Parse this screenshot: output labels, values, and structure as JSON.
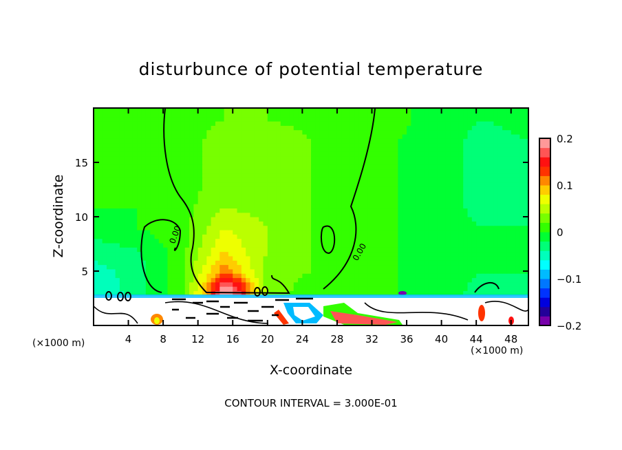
{
  "chart_data": {
    "type": "heatmap",
    "title": "disturbunce of potential temperature",
    "xlabel": "X-coordinate",
    "ylabel": "Z-coordinate",
    "x_unit_label": "(×1000 m)",
    "footnote": "CONTOUR INTERVAL = 3.000E-01",
    "xlim": [
      0,
      50
    ],
    "ylim": [
      0,
      20
    ],
    "xticks": [
      4,
      8,
      12,
      16,
      20,
      24,
      28,
      32,
      36,
      40,
      44,
      48
    ],
    "yticks": [
      5,
      10,
      15
    ],
    "contour_label": "0.00",
    "colorbar": {
      "range": [
        -0.2,
        0.2
      ],
      "step": 0.02,
      "tick_values": [
        0.2,
        0.1,
        0,
        -0.1,
        -0.2
      ],
      "tick_labels": [
        "0.2",
        "0.1",
        "0",
        "−0.1",
        "−0.2"
      ],
      "colors_low_to_high": [
        "#7700aa",
        "#220099",
        "#0000dd",
        "#0033ff",
        "#0077ff",
        "#00bbff",
        "#00ffff",
        "#00ffbb",
        "#00ff77",
        "#00ff33",
        "#33ff00",
        "#77ff00",
        "#bbff00",
        "#eeff00",
        "#ffcc00",
        "#ff8800",
        "#ff3300",
        "#ff1111",
        "#ff5555",
        "#ff9999"
      ]
    },
    "grid_x": [
      0,
      5,
      10,
      15,
      20,
      25,
      30,
      35,
      40,
      45,
      50
    ],
    "grid_z": [
      3,
      5,
      7,
      9,
      11,
      13,
      15,
      17,
      19,
      20
    ],
    "values": [
      [
        -0.06,
        -0.03,
        0.01,
        0.15,
        0.03,
        0.01,
        0.0,
        0.0,
        -0.01,
        -0.03,
        -0.03
      ],
      [
        -0.05,
        -0.03,
        0.01,
        0.11,
        0.03,
        0.02,
        0.01,
        0.0,
        -0.01,
        -0.02,
        -0.02
      ],
      [
        -0.03,
        -0.02,
        0.01,
        0.08,
        0.04,
        0.02,
        0.01,
        0.0,
        -0.01,
        -0.02,
        -0.02
      ],
      [
        -0.01,
        0.0,
        0.01,
        0.06,
        0.04,
        0.02,
        0.01,
        0.0,
        -0.01,
        -0.02,
        -0.02
      ],
      [
        0.0,
        0.0,
        0.01,
        0.04,
        0.03,
        0.02,
        0.01,
        0.0,
        -0.01,
        -0.03,
        -0.02
      ],
      [
        0.0,
        0.01,
        0.01,
        0.03,
        0.03,
        0.02,
        0.01,
        0.0,
        -0.01,
        -0.03,
        -0.02
      ],
      [
        0.01,
        0.01,
        0.01,
        0.03,
        0.03,
        0.02,
        0.01,
        0.0,
        -0.01,
        -0.03,
        -0.02
      ],
      [
        0.01,
        0.01,
        0.01,
        0.03,
        0.03,
        0.02,
        0.01,
        0.0,
        -0.01,
        -0.03,
        -0.02
      ],
      [
        0.01,
        0.01,
        0.01,
        0.02,
        0.02,
        0.015,
        0.01,
        0.005,
        -0.01,
        -0.02,
        -0.01
      ],
      [
        0.01,
        0.01,
        0.01,
        0.02,
        0.02,
        0.015,
        0.01,
        0.005,
        -0.01,
        -0.02,
        -0.01
      ]
    ],
    "below_z_unresolved": 2.8
  }
}
